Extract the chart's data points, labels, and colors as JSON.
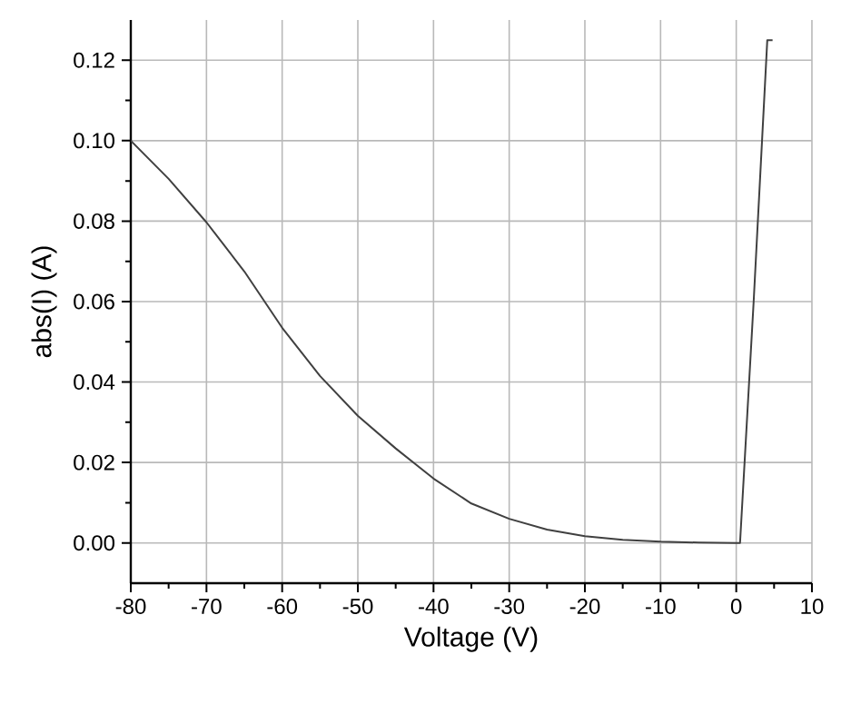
{
  "chart_data": {
    "type": "line",
    "xlabel": "Voltage (V)",
    "ylabel": "abs(I) (A)",
    "x": [
      -80,
      -75,
      -70,
      -65,
      -60,
      -55,
      -50,
      -45,
      -40,
      -35,
      -30,
      -25,
      -20,
      -15,
      -10,
      -5,
      0,
      0.5,
      2.3,
      4.1,
      4.8
    ],
    "series": [
      {
        "color": "#404040",
        "values": [
          0.1,
          0.0905,
          0.0797,
          0.0675,
          0.0535,
          0.0415,
          0.0316,
          0.0235,
          0.016,
          0.0098,
          0.006,
          0.0033,
          0.0017,
          0.0008,
          0.0003,
          0.0001,
          0,
          0,
          0.06,
          0.125,
          0.125
        ]
      }
    ],
    "xlim": [
      -80,
      10
    ],
    "ylim": [
      -0.01,
      0.13
    ],
    "xticks": [
      -80,
      -70,
      -60,
      -50,
      -40,
      -30,
      -20,
      -10,
      0,
      10
    ],
    "yticks": [
      {
        "value": 0,
        "label": "0.00"
      },
      {
        "value": 0.02,
        "label": "0.02"
      },
      {
        "value": 0.04,
        "label": "0.04"
      },
      {
        "value": 0.06,
        "label": "0.06"
      },
      {
        "value": 0.08,
        "label": "0.08"
      },
      {
        "value": 0.1,
        "label": "0.10"
      },
      {
        "value": 0.12,
        "label": "0.12"
      }
    ],
    "grid": true,
    "marker": "none",
    "line_style": "solid"
  }
}
